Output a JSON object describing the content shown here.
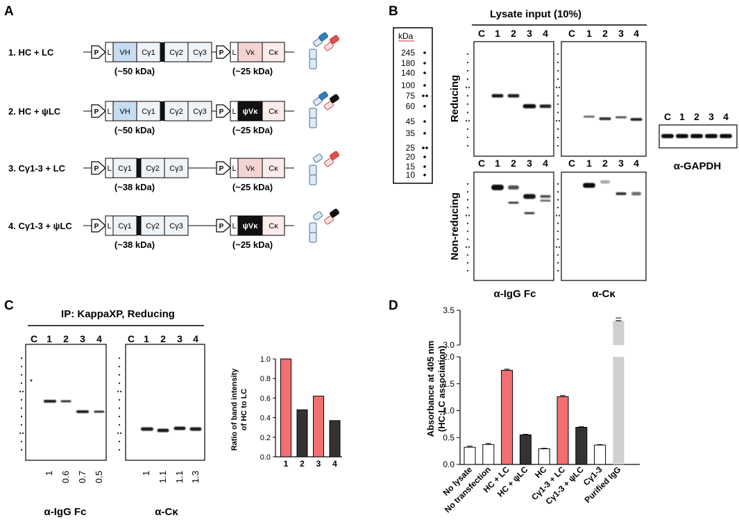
{
  "panels": {
    "A": {
      "label": "A",
      "rows": [
        {
          "num": "1.",
          "name": "HC + LC",
          "hc_domains": [
            "VH",
            "Cγ1",
            "Cγ2",
            "Cγ3"
          ],
          "hc_kda": "(~50 kDa)",
          "lc_domains": [
            "Vκ",
            "Cκ"
          ],
          "lc_kda": "(~25 kDa)"
        },
        {
          "num": "2.",
          "name": "HC + ψLC",
          "hc_domains": [
            "VH",
            "Cγ1",
            "Cγ2",
            "Cγ3"
          ],
          "hc_kda": "(~50 kDa)",
          "lc_domains": [
            "ψVκ",
            "Cκ"
          ],
          "lc_kda": "(~25 kDa)"
        },
        {
          "num": "3.",
          "name": "Cγ1-3 + LC",
          "hc_domains": [
            "Cγ1",
            "Cγ2",
            "Cγ3"
          ],
          "hc_kda": "(~38 kDa)",
          "lc_domains": [
            "Vκ",
            "Cκ"
          ],
          "lc_kda": "(~25 kDa)"
        },
        {
          "num": "4.",
          "name": "Cγ1-3 + ψLC",
          "hc_domains": [
            "Cγ1",
            "Cγ2",
            "Cγ3"
          ],
          "hc_kda": "(~38 kDa)",
          "lc_domains": [
            "ψVκ",
            "Cκ"
          ],
          "lc_kda": "(~25 kDa)"
        }
      ],
      "promoter": "P",
      "leader": "L"
    },
    "B": {
      "label": "B",
      "title": "Lysate input (10%)",
      "ladder_title": "kDa",
      "ladder": [
        "245",
        "180",
        "140",
        "100",
        "75",
        "60",
        "45",
        "35",
        "25",
        "20",
        "15",
        "10"
      ],
      "lanes": [
        "C",
        "1",
        "2",
        "3",
        "4"
      ],
      "row_reducing": "Reducing",
      "row_nonreducing": "Non-reducing",
      "col_fc": "α-IgG Fc",
      "col_ck": "α-Cκ",
      "gapdh": "α-GAPDH"
    },
    "C": {
      "label": "C",
      "title": "IP: KappaXP, Reducing",
      "lanes": [
        "C",
        "1",
        "2",
        "3",
        "4"
      ],
      "fc_quant": [
        "1",
        "0.6",
        "0.7",
        "0.5"
      ],
      "ck_quant": [
        "1",
        "1.1",
        "1.1",
        "1.3"
      ],
      "fc_label": "α-IgG Fc",
      "ck_label": "α-Cκ"
    },
    "D": {
      "label": "D"
    }
  },
  "chart_data": [
    {
      "type": "bar",
      "title": "",
      "categories": [
        "1",
        "2",
        "3",
        "4"
      ],
      "values": [
        1.0,
        0.48,
        0.62,
        0.37
      ],
      "colors": [
        "#f26f6f",
        "#333333",
        "#f26f6f",
        "#333333"
      ],
      "ylabel": "Ratio of band intensity of HC to LC",
      "ylabel_lines": [
        "Ratio of band intensity",
        "of HC to LC"
      ],
      "xlabel": "",
      "ylim": [
        0,
        1.0
      ],
      "yticks": [
        "0.0",
        "0.2",
        "0.4",
        "0.6",
        "0.8",
        "1.0"
      ]
    },
    {
      "type": "bar",
      "title": "",
      "categories": [
        "No lysate",
        "No transfection",
        "HC + LC",
        "HC + ψLC",
        "HC",
        "Cγ1-3 + LC",
        "Cγ1-3 + ψLC",
        "Cγ1-3",
        "Purified IgG"
      ],
      "values": [
        0.32,
        0.37,
        1.75,
        0.55,
        0.29,
        1.26,
        0.69,
        0.36,
        3.35
      ],
      "errors": [
        0.02,
        0.02,
        0.02,
        0.01,
        0.01,
        0.02,
        0.01,
        0.01,
        0.04
      ],
      "colors": [
        "#ffffff",
        "#ffffff",
        "#f26f6f",
        "#333333",
        "#ffffff",
        "#f26f6f",
        "#333333",
        "#ffffff",
        "#d0d0d0"
      ],
      "ylabel_lines": [
        "Absorbance at 405 nm",
        "(HC:LC association)"
      ],
      "xlabel": "",
      "axis_break": [
        2.0,
        3.0
      ],
      "ylim": [
        0,
        3.5
      ],
      "yticks_lower": [
        "0.0",
        "0.5",
        "1.0",
        "1.5",
        "2.0"
      ],
      "yticks_upper": [
        "3.0",
        "3.5"
      ]
    }
  ]
}
